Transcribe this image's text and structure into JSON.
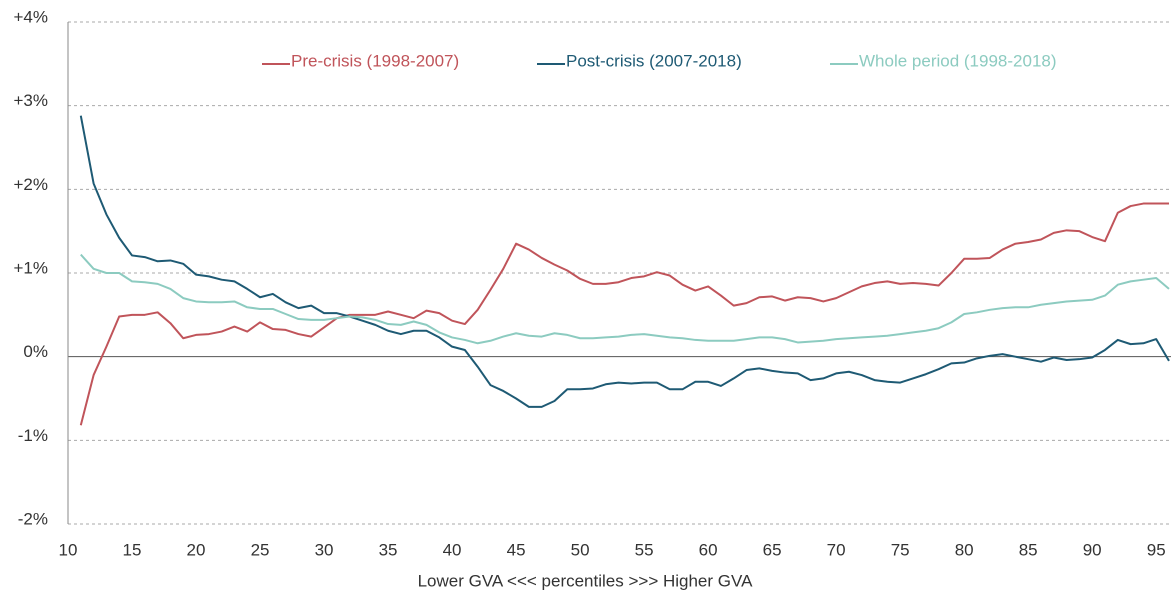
{
  "chart_data": {
    "type": "line",
    "x_label": "Lower GVA <<< percentiles >>> Higher GVA",
    "x": [
      11,
      12,
      13,
      14,
      15,
      16,
      17,
      18,
      19,
      20,
      21,
      22,
      23,
      24,
      25,
      26,
      27,
      28,
      29,
      30,
      31,
      32,
      33,
      34,
      35,
      36,
      37,
      38,
      39,
      40,
      41,
      42,
      43,
      44,
      45,
      46,
      47,
      48,
      49,
      50,
      51,
      52,
      53,
      54,
      55,
      56,
      57,
      58,
      59,
      60,
      61,
      62,
      63,
      64,
      65,
      66,
      67,
      68,
      69,
      70,
      71,
      72,
      73,
      74,
      75,
      76,
      77,
      78,
      79,
      80,
      81,
      82,
      83,
      84,
      85,
      86,
      87,
      88,
      89,
      90,
      91,
      92,
      93,
      94,
      95,
      96
    ],
    "series": [
      {
        "name": "Pre-crisis (1998-2007)",
        "color": "#c0545a",
        "values": [
          -0.82,
          -0.22,
          0.12,
          0.48,
          0.5,
          0.5,
          0.53,
          0.4,
          0.22,
          0.26,
          0.27,
          0.3,
          0.36,
          0.3,
          0.41,
          0.33,
          0.32,
          0.27,
          0.24,
          0.35,
          0.46,
          0.5,
          0.5,
          0.5,
          0.54,
          0.5,
          0.46,
          0.55,
          0.52,
          0.43,
          0.39,
          0.56,
          0.8,
          1.05,
          1.35,
          1.28,
          1.18,
          1.1,
          1.03,
          0.93,
          0.87,
          0.87,
          0.89,
          0.94,
          0.96,
          1.01,
          0.97,
          0.86,
          0.79,
          0.84,
          0.73,
          0.61,
          0.64,
          0.71,
          0.72,
          0.67,
          0.71,
          0.7,
          0.66,
          0.7,
          0.77,
          0.84,
          0.88,
          0.9,
          0.87,
          0.88,
          0.87,
          0.85,
          1.0,
          1.17,
          1.17,
          1.18,
          1.28,
          1.35,
          1.37,
          1.4,
          1.48,
          1.51,
          1.5,
          1.43,
          1.38,
          1.72,
          1.8,
          1.83,
          1.83,
          1.83
        ]
      },
      {
        "name": "Post-crisis (2007-2018)",
        "color": "#1e5a74",
        "values": [
          2.88,
          2.07,
          1.7,
          1.42,
          1.21,
          1.19,
          1.14,
          1.15,
          1.11,
          0.98,
          0.96,
          0.92,
          0.9,
          0.81,
          0.71,
          0.75,
          0.65,
          0.58,
          0.61,
          0.52,
          0.52,
          0.48,
          0.43,
          0.38,
          0.31,
          0.27,
          0.31,
          0.31,
          0.23,
          0.12,
          0.08,
          -0.12,
          -0.34,
          -0.41,
          -0.5,
          -0.6,
          -0.6,
          -0.53,
          -0.39,
          -0.39,
          -0.38,
          -0.33,
          -0.31,
          -0.32,
          -0.31,
          -0.31,
          -0.39,
          -0.39,
          -0.3,
          -0.3,
          -0.35,
          -0.26,
          -0.16,
          -0.14,
          -0.17,
          -0.19,
          -0.2,
          -0.28,
          -0.26,
          -0.2,
          -0.18,
          -0.22,
          -0.28,
          -0.3,
          -0.31,
          -0.26,
          -0.21,
          -0.15,
          -0.08,
          -0.07,
          -0.02,
          0.01,
          0.03,
          0.0,
          -0.03,
          -0.06,
          -0.01,
          -0.04,
          -0.03,
          -0.01,
          0.08,
          0.2,
          0.15,
          0.16,
          0.21,
          -0.05
        ]
      },
      {
        "name": "Whole period (1998-2018)",
        "color": "#8ccbc0",
        "values": [
          1.22,
          1.05,
          1.0,
          1.0,
          0.9,
          0.89,
          0.87,
          0.81,
          0.7,
          0.66,
          0.65,
          0.65,
          0.66,
          0.59,
          0.57,
          0.57,
          0.51,
          0.45,
          0.44,
          0.44,
          0.46,
          0.48,
          0.47,
          0.44,
          0.39,
          0.38,
          0.42,
          0.38,
          0.29,
          0.23,
          0.2,
          0.16,
          0.19,
          0.24,
          0.28,
          0.25,
          0.24,
          0.28,
          0.26,
          0.22,
          0.22,
          0.23,
          0.24,
          0.26,
          0.27,
          0.25,
          0.23,
          0.22,
          0.2,
          0.19,
          0.19,
          0.19,
          0.21,
          0.23,
          0.23,
          0.21,
          0.17,
          0.18,
          0.19,
          0.21,
          0.22,
          0.23,
          0.24,
          0.25,
          0.27,
          0.29,
          0.31,
          0.34,
          0.41,
          0.51,
          0.53,
          0.56,
          0.58,
          0.59,
          0.59,
          0.62,
          0.64,
          0.66,
          0.67,
          0.68,
          0.73,
          0.86,
          0.9,
          0.92,
          0.94,
          0.81
        ]
      }
    ],
    "xlim": [
      10,
      96
    ],
    "xticks": [
      10,
      15,
      20,
      25,
      30,
      35,
      40,
      45,
      50,
      55,
      60,
      65,
      70,
      75,
      80,
      85,
      90,
      95
    ],
    "ylim": [
      -2,
      4
    ],
    "yticks": [
      {
        "value": -2,
        "label": "-2%"
      },
      {
        "value": -1,
        "label": "-1%"
      },
      {
        "value": 0,
        "label": "0%"
      },
      {
        "value": 1,
        "label": "+1%"
      },
      {
        "value": 2,
        "label": "+2%"
      },
      {
        "value": 3,
        "label": "+3%"
      },
      {
        "value": 4,
        "label": "+4%"
      }
    ],
    "grid": true,
    "legend": "top"
  }
}
